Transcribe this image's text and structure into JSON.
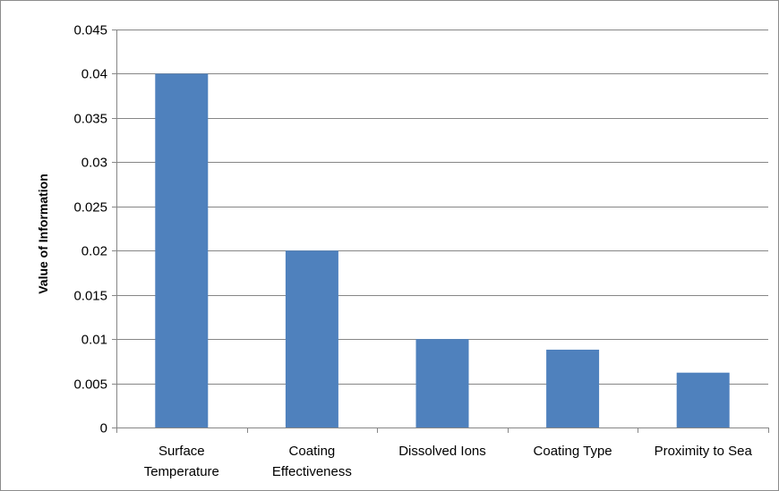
{
  "chart_data": {
    "type": "bar",
    "title": "",
    "xlabel": "",
    "ylabel": "Value of Information",
    "categories": [
      [
        "Surface",
        "Temperature"
      ],
      [
        "Coating",
        "Effectiveness"
      ],
      [
        "Dissolved Ions"
      ],
      [
        "Coating Type"
      ],
      [
        "Proximity to Sea"
      ]
    ],
    "values": [
      0.04,
      0.02,
      0.01,
      0.0088,
      0.0062
    ],
    "ylim": [
      0,
      0.045
    ],
    "yticks": [
      0,
      0.005,
      0.01,
      0.015,
      0.02,
      0.025,
      0.03,
      0.035,
      0.04,
      0.045
    ],
    "ytick_labels": [
      "0",
      "0.005",
      "0.01",
      "0.015",
      "0.02",
      "0.025",
      "0.03",
      "0.035",
      "0.04",
      "0.045"
    ],
    "grid": true,
    "legend": "none",
    "colors": {
      "bar": "#4f81bd",
      "gridline": "#868686",
      "axis": "#868686"
    }
  }
}
